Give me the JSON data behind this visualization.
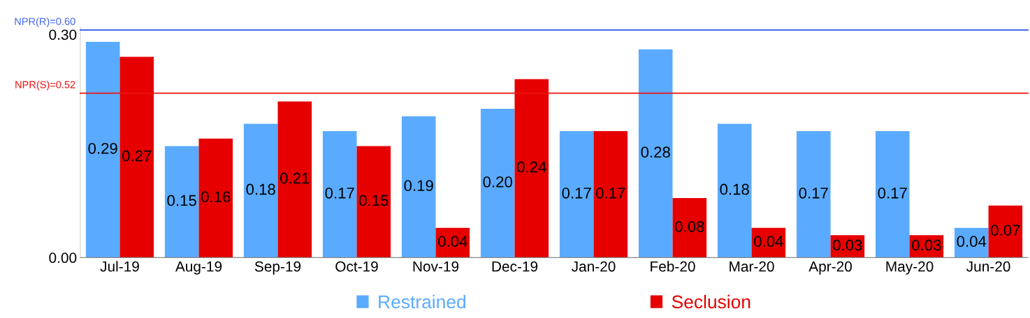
{
  "chart_data": {
    "type": "bar",
    "categories": [
      "Jul-19",
      "Aug-19",
      "Sep-19",
      "Oct-19",
      "Nov-19",
      "Dec-19",
      "Jan-20",
      "Feb-20",
      "Mar-20",
      "Apr-20",
      "May-20",
      "Jun-20"
    ],
    "series": [
      {
        "name": "Restrained",
        "color": "#5aabff",
        "values": [
          0.29,
          0.15,
          0.18,
          0.17,
          0.19,
          0.2,
          0.17,
          0.28,
          0.18,
          0.17,
          0.17,
          0.04
        ],
        "value_labels": [
          "0.29",
          "0.15",
          "0.18",
          "0.17",
          "0.19",
          "0.20",
          "0.17",
          "0.28",
          "0.18",
          "0.17",
          "0.17",
          "0.04"
        ]
      },
      {
        "name": "Seclusion",
        "color": "#e60000",
        "values": [
          0.27,
          0.16,
          0.21,
          0.15,
          0.04,
          0.24,
          0.17,
          0.08,
          0.04,
          0.03,
          0.03,
          0.07
        ],
        "value_labels": [
          "0.27",
          "0.16",
          "0.21",
          "0.15",
          "0.04",
          "0.24",
          "0.17",
          "0.08",
          "0.04",
          "0.03",
          "0.03",
          "0.07"
        ]
      }
    ],
    "ylim": [
      0,
      0.31
    ],
    "yticks": [
      {
        "value": 0,
        "label": "0.00"
      },
      {
        "value": 0.3,
        "label": "0.30"
      }
    ],
    "ref_lines": [
      {
        "axis": "y",
        "value": 0.306,
        "color": "#4466ee"
      },
      {
        "axis": "y",
        "value": 0.221,
        "color": "#ee1111"
      }
    ],
    "annotations": [
      "NPR(R)=0.60",
      "NPR(S)=0.52"
    ],
    "grid": false,
    "legend": "bottom"
  }
}
